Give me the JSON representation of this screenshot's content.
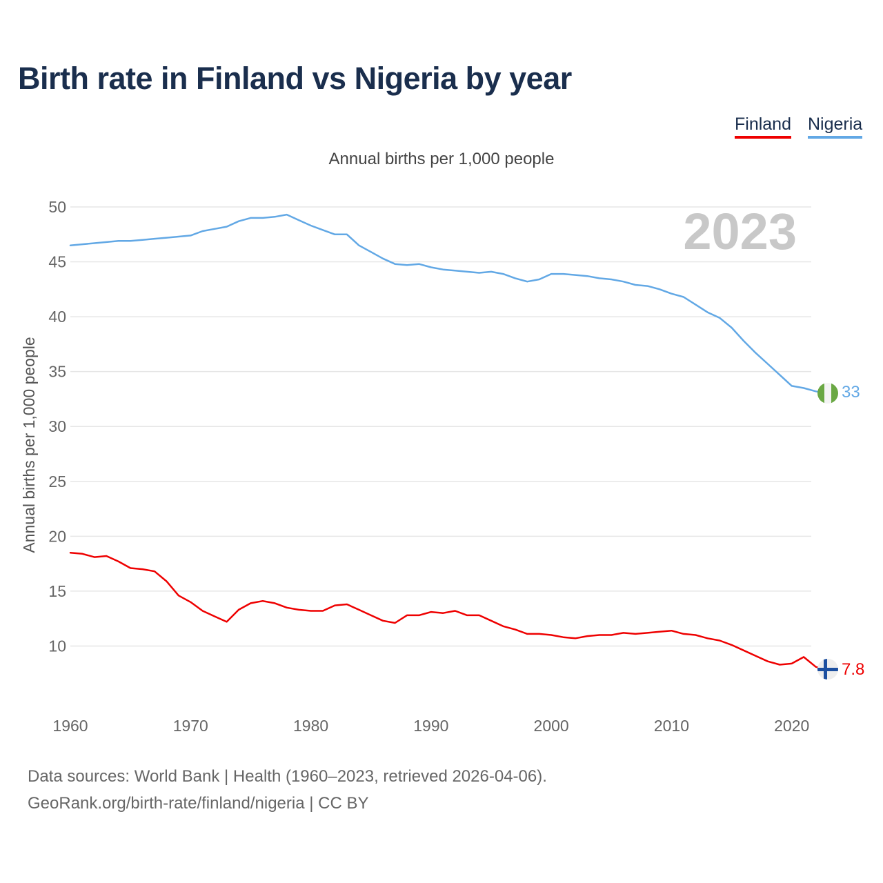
{
  "title": "Birth rate in Finland vs Nigeria by year",
  "legend": [
    {
      "name": "Finland",
      "color": "#ee0000"
    },
    {
      "name": "Nigeria",
      "color": "#62a8e5"
    }
  ],
  "footer": {
    "line1": "Data sources: World Bank | Health (1960–2023, retrieved 2026-04-06).",
    "line2": "GeoRank.org/birth-rate/finland/nigeria | CC BY"
  },
  "chart_data": {
    "type": "line",
    "title": "Birth rate in Finland vs Nigeria by year",
    "subtitle": "Annual births per 1,000 people",
    "xlabel": "",
    "ylabel": "Annual births per 1,000 people",
    "year_label": "2023",
    "xlim": [
      1960,
      2023
    ],
    "ylim": [
      5,
      50
    ],
    "grid": true,
    "legend_position": "top-right",
    "x_ticks": [
      1960,
      1970,
      1980,
      1990,
      2000,
      2010,
      2020
    ],
    "y_ticks": [
      10,
      15,
      20,
      25,
      30,
      35,
      40,
      45,
      50
    ],
    "x": [
      1960,
      1961,
      1962,
      1963,
      1964,
      1965,
      1966,
      1967,
      1968,
      1969,
      1970,
      1971,
      1972,
      1973,
      1974,
      1975,
      1976,
      1977,
      1978,
      1979,
      1980,
      1981,
      1982,
      1983,
      1984,
      1985,
      1986,
      1987,
      1988,
      1989,
      1990,
      1991,
      1992,
      1993,
      1994,
      1995,
      1996,
      1997,
      1998,
      1999,
      2000,
      2001,
      2002,
      2003,
      2004,
      2005,
      2006,
      2007,
      2008,
      2009,
      2010,
      2011,
      2012,
      2013,
      2014,
      2015,
      2016,
      2017,
      2018,
      2019,
      2020,
      2021,
      2022,
      2023
    ],
    "series": [
      {
        "name": "Finland",
        "color": "#ee0000",
        "end_label": "7.8",
        "values": [
          18.5,
          18.4,
          18.1,
          18.2,
          17.7,
          17.1,
          17.0,
          16.8,
          15.9,
          14.6,
          14.0,
          13.2,
          12.7,
          12.2,
          13.3,
          13.9,
          14.1,
          13.9,
          13.5,
          13.3,
          13.2,
          13.2,
          13.7,
          13.8,
          13.3,
          12.8,
          12.3,
          12.1,
          12.8,
          12.8,
          13.1,
          13.0,
          13.2,
          12.8,
          12.8,
          12.3,
          11.8,
          11.5,
          11.1,
          11.1,
          11.0,
          10.8,
          10.7,
          10.9,
          11.0,
          11.0,
          11.2,
          11.1,
          11.2,
          11.3,
          11.4,
          11.1,
          11.0,
          10.7,
          10.5,
          10.1,
          9.6,
          9.1,
          8.6,
          8.3,
          8.4,
          9.0,
          8.1,
          7.8
        ]
      },
      {
        "name": "Nigeria",
        "color": "#62a8e5",
        "end_label": "33",
        "values": [
          46.5,
          46.6,
          46.7,
          46.8,
          46.9,
          46.9,
          47.0,
          47.1,
          47.2,
          47.3,
          47.4,
          47.8,
          48.0,
          48.2,
          48.7,
          49.0,
          49.0,
          49.1,
          49.3,
          48.8,
          48.3,
          47.9,
          47.5,
          47.5,
          46.5,
          45.9,
          45.3,
          44.8,
          44.7,
          44.8,
          44.5,
          44.3,
          44.2,
          44.1,
          44.0,
          44.1,
          43.9,
          43.5,
          43.2,
          43.4,
          43.9,
          43.9,
          43.8,
          43.7,
          43.5,
          43.4,
          43.2,
          42.9,
          42.8,
          42.5,
          42.1,
          41.8,
          41.1,
          40.4,
          39.9,
          39.0,
          37.8,
          36.7,
          35.7,
          34.7,
          33.7,
          33.5,
          33.2,
          33.0
        ]
      }
    ]
  }
}
